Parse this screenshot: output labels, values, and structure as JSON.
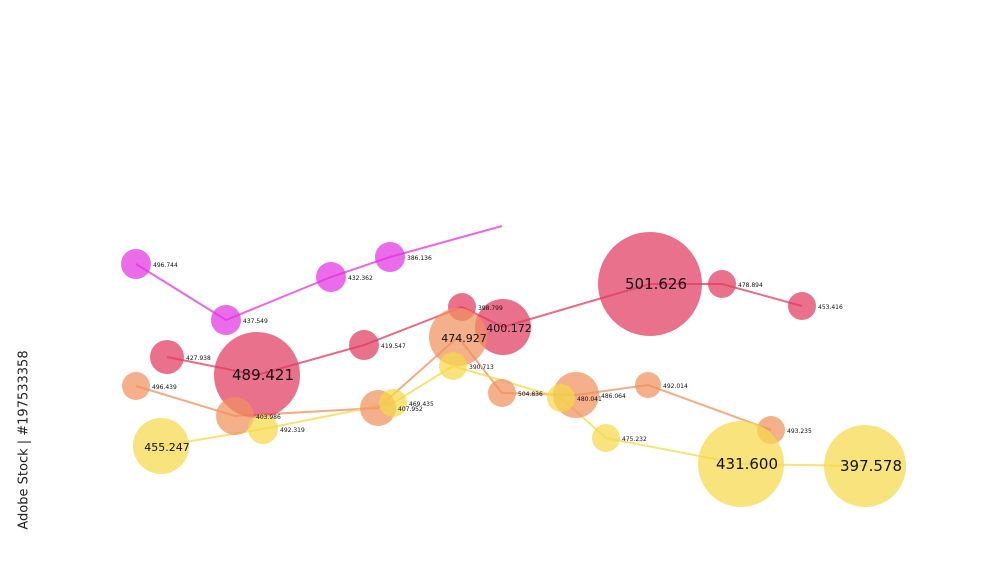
{
  "watermark": {
    "text": "Adobe Stock | #197533358"
  },
  "chart_data": {
    "type": "scatter",
    "title": "",
    "xlabel": "",
    "ylabel": "",
    "series": [
      {
        "color": "#e233e2",
        "points": [
          {
            "label": "496.744",
            "r": 15
          },
          {
            "label": "437.549",
            "r": 15
          },
          {
            "label": "432.362",
            "r": 15
          },
          {
            "label": "386.136",
            "r": 15
          }
        ]
      },
      {
        "color": "#e23a60",
        "points": [
          {
            "label": "427.938",
            "r": 17
          },
          {
            "label": "489.421",
            "r": 43
          },
          {
            "label": "419.547",
            "r": 15
          },
          {
            "label": "398.799",
            "r": 14
          },
          {
            "label": "400.172",
            "r": 28
          },
          {
            "label": "501.626",
            "r": 52
          },
          {
            "label": "478.894",
            "r": 14
          },
          {
            "label": "453.416",
            "r": 14
          }
        ]
      },
      {
        "color": "#f0905e",
        "points": [
          {
            "label": "496.439",
            "r": 14
          },
          {
            "label": "403.986",
            "r": 19
          },
          {
            "label": "407.952",
            "r": 18
          },
          {
            "label": "474.927",
            "r": 29
          },
          {
            "label": "504.836",
            "r": 14
          },
          {
            "label": "486.064",
            "r": 23
          },
          {
            "label": "492.014",
            "r": 13
          },
          {
            "label": "493.235",
            "r": 14
          }
        ]
      },
      {
        "color": "#f5d84a",
        "points": [
          {
            "label": "455.247",
            "r": 28
          },
          {
            "label": "492.319",
            "r": 15
          },
          {
            "label": "469.435",
            "r": 14
          },
          {
            "label": "390.713",
            "r": 14
          },
          {
            "label": "480.041",
            "r": 14
          },
          {
            "label": "475.232",
            "r": 14
          },
          {
            "label": "431.600",
            "r": 43
          },
          {
            "label": "397.578",
            "r": 41
          }
        ]
      }
    ]
  }
}
